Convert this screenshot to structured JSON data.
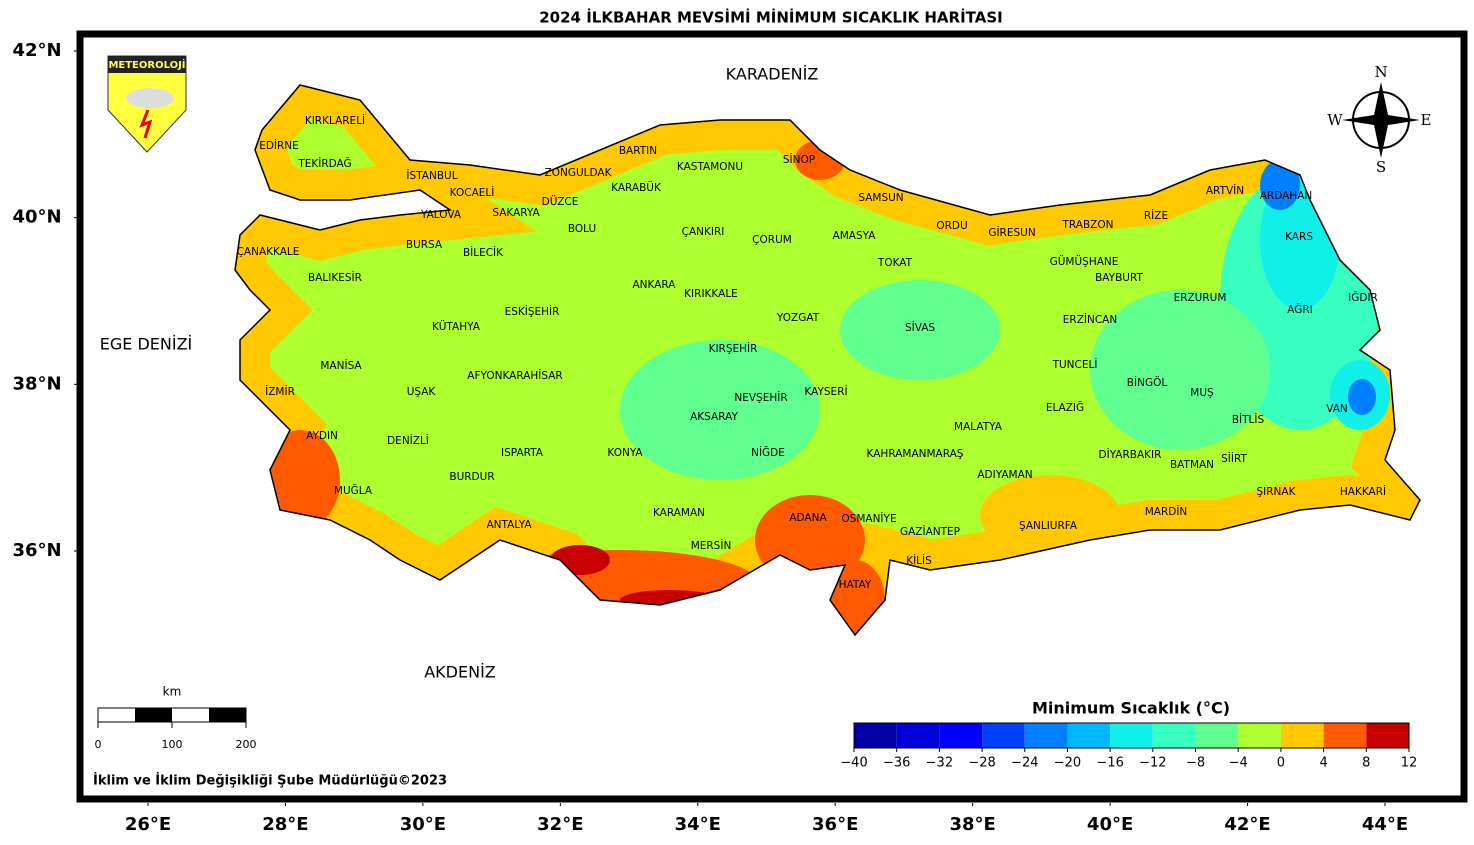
{
  "title": "2024 İLKBAHAR MEVSİMİ MİNİMUM SICAKLIK HARİTASI",
  "seas": [
    "KARADENİZ",
    "EGE DENİZİ",
    "AKDENİZ"
  ],
  "provinces": [
    "KIRKLARELİ",
    "EDİRNE",
    "TEKİRDAĞ",
    "İSTANBUL",
    "KOCAELİ",
    "YALOVA",
    "SAKARYA",
    "DÜZCE",
    "ZONGULDAK",
    "BARTIN",
    "KARABÜK",
    "KASTAMONU",
    "SİNOP",
    "SAMSUN",
    "ORDU",
    "GİRESUN",
    "TRABZON",
    "RİZE",
    "ARTVİN",
    "ARDAHAN",
    "KARS",
    "IĞDIR",
    "AĞRI",
    "ERZURUM",
    "BAYBURT",
    "GÜMÜŞHANE",
    "ERZİNCAN",
    "TUNCELİ",
    "BİNGÖL",
    "MUŞ",
    "BİTLİS",
    "VAN",
    "HAKKARİ",
    "ŞIRNAK",
    "SİİRT",
    "BATMAN",
    "DİYARBAKIR",
    "MARDİN",
    "ŞANLIURFA",
    "ADIYAMAN",
    "MALATYA",
    "ELAZIĞ",
    "SİVAS",
    "TOKAT",
    "AMASYA",
    "ÇORUM",
    "ÇANKIRI",
    "YOZGAT",
    "KIRIKKALE",
    "ANKARA",
    "KIRŞEHİR",
    "NEVŞEHİR",
    "KAYSERİ",
    "AKSARAY",
    "NİĞDE",
    "KAHRAMANMARAŞ",
    "GAZİANTEP",
    "KİLİS",
    "OSMANİYE",
    "ADANA",
    "HATAY",
    "MERSİN",
    "KARAMAN",
    "KONYA",
    "ANTALYA",
    "ISPARTA",
    "BURDUR",
    "AFYONKARAHİSAR",
    "KÜTAHYA",
    "ESKİŞEHİR",
    "BİLECİK",
    "BOLU",
    "BURSA",
    "BALIKESİR",
    "ÇANAKKALE",
    "MANİSA",
    "İZMİR",
    "UŞAK",
    "AYDIN",
    "DENİZLİ",
    "MUĞLA"
  ],
  "logo_text": "METEOROLOJİ",
  "compass": [
    "N",
    "E",
    "S",
    "W"
  ],
  "lat_ticks": [
    {
      "value": 42,
      "label": "42°N"
    },
    {
      "value": 40,
      "label": "40°N"
    },
    {
      "value": 38,
      "label": "38°N"
    },
    {
      "value": 36,
      "label": "36°N"
    }
  ],
  "lon_ticks": [
    {
      "value": 26,
      "label": "26°E"
    },
    {
      "value": 28,
      "label": "28°E"
    },
    {
      "value": 30,
      "label": "30°E"
    },
    {
      "value": 32,
      "label": "32°E"
    },
    {
      "value": 34,
      "label": "34°E"
    },
    {
      "value": 36,
      "label": "36°E"
    },
    {
      "value": 38,
      "label": "38°E"
    },
    {
      "value": 40,
      "label": "40°E"
    },
    {
      "value": 42,
      "label": "42°E"
    },
    {
      "value": 44,
      "label": "44°E"
    }
  ],
  "scale_bar": {
    "unit": "km",
    "ticks": [
      0,
      100,
      200
    ]
  },
  "legend": {
    "title": "Minimum Sıcaklık (°C)",
    "ticks": [
      {
        "value": -40,
        "label": "−40"
      },
      {
        "value": -36,
        "label": "−36"
      },
      {
        "value": -32,
        "label": "−32"
      },
      {
        "value": -28,
        "label": "−28"
      },
      {
        "value": -24,
        "label": "−24"
      },
      {
        "value": -20,
        "label": "−20"
      },
      {
        "value": -16,
        "label": "−16"
      },
      {
        "value": -12,
        "label": "−12"
      },
      {
        "value": -8,
        "label": "−8"
      },
      {
        "value": -4,
        "label": "−4"
      },
      0,
      4,
      8,
      12
    ],
    "colors": [
      "#0000a8",
      "#0000d8",
      "#0000ff",
      "#0040ff",
      "#0080ff",
      "#00b8ff",
      "#10f0e8",
      "#38ffc0",
      "#60ff90",
      "#adff2f",
      "#ffc800",
      "#ff5a00",
      "#c80000"
    ]
  },
  "footer": "İklim ve İklim Değişikliği Şube Müdürlüğü©2023"
}
